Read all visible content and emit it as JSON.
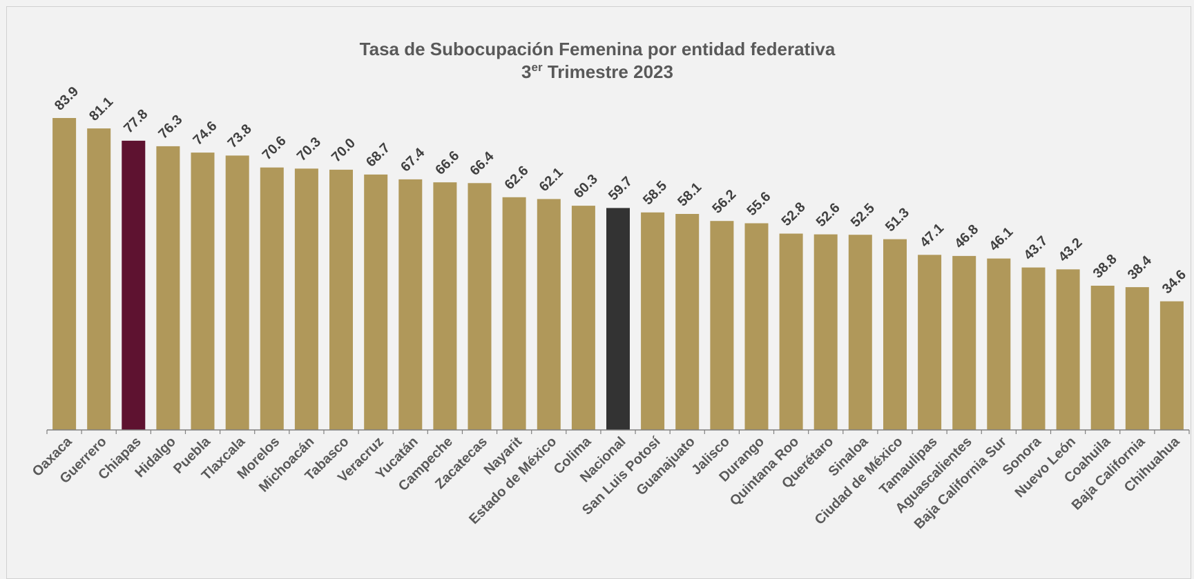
{
  "colors": {
    "default_bar": "#B0985A",
    "highlight_state": "#5E1230",
    "national": "#333333",
    "axis": "#7f7f7f",
    "background": "#f2f2f2"
  },
  "chart_data": {
    "type": "bar",
    "title": "Tasa de Subocupación Femenina por entidad federativa",
    "subtitle_number": "3",
    "subtitle_superscript": "er",
    "subtitle_rest": " Trimestre 2023",
    "xlabel": "",
    "ylabel": "",
    "ylim": [
      0,
      90
    ],
    "grid": false,
    "categories": [
      "Oaxaca",
      "Guerrero",
      "Chiapas",
      "Hidalgo",
      "Puebla",
      "Tlaxcala",
      "Morelos",
      "Michoacán",
      "Tabasco",
      "Veracruz",
      "Yucatán",
      "Campeche",
      "Zacatecas",
      "Nayarit",
      "Estado de México",
      "Colima",
      "Nacional",
      "San Luis Potosí",
      "Guanajuato",
      "Jalisco",
      "Durango",
      "Quintana Roo",
      "Querétaro",
      "Sinaloa",
      "Ciudad de México",
      "Tamaulipas",
      "Aguascalientes",
      "Baja California Sur",
      "Sonora",
      "Nuevo León",
      "Coahuila",
      "Baja California",
      "Chihuahua"
    ],
    "values": [
      83.9,
      81.1,
      77.8,
      76.3,
      74.6,
      73.8,
      70.6,
      70.3,
      70.0,
      68.7,
      67.4,
      66.6,
      66.4,
      62.6,
      62.1,
      60.3,
      59.7,
      58.5,
      58.1,
      56.2,
      55.6,
      52.8,
      52.6,
      52.5,
      51.3,
      47.1,
      46.8,
      46.1,
      43.7,
      43.2,
      38.8,
      38.4,
      34.6
    ],
    "value_labels": [
      "83.9",
      "81.1",
      "77.8",
      "76.3",
      "74.6",
      "73.8",
      "70.6",
      "70.3",
      "70.0",
      "68.7",
      "67.4",
      "66.6",
      "66.4",
      "62.6",
      "62.1",
      "60.3",
      "59.7",
      "58.5",
      "58.1",
      "56.2",
      "55.6",
      "52.8",
      "52.6",
      "52.5",
      "51.3",
      "47.1",
      "46.8",
      "46.1",
      "43.7",
      "43.2",
      "38.8",
      "38.4",
      "34.6"
    ],
    "highlights": {
      "Chiapas": "highlight_state",
      "Nacional": "national"
    }
  }
}
